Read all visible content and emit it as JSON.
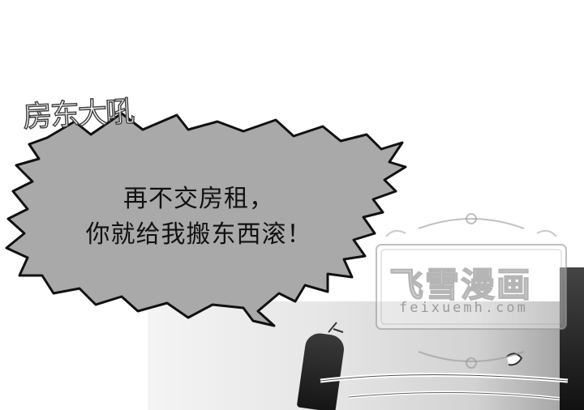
{
  "sound_effect": "房东大吼",
  "speech_bubble": {
    "lines": [
      "再不交房租，",
      "你就给我搬东西滚！"
    ]
  },
  "watermark": {
    "title": "飞雪漫画",
    "url": "feixuemh.com"
  },
  "colors": {
    "bubble_fill": "#a9a9a9",
    "bubble_outline": "#111111",
    "background": "#ffffff"
  }
}
